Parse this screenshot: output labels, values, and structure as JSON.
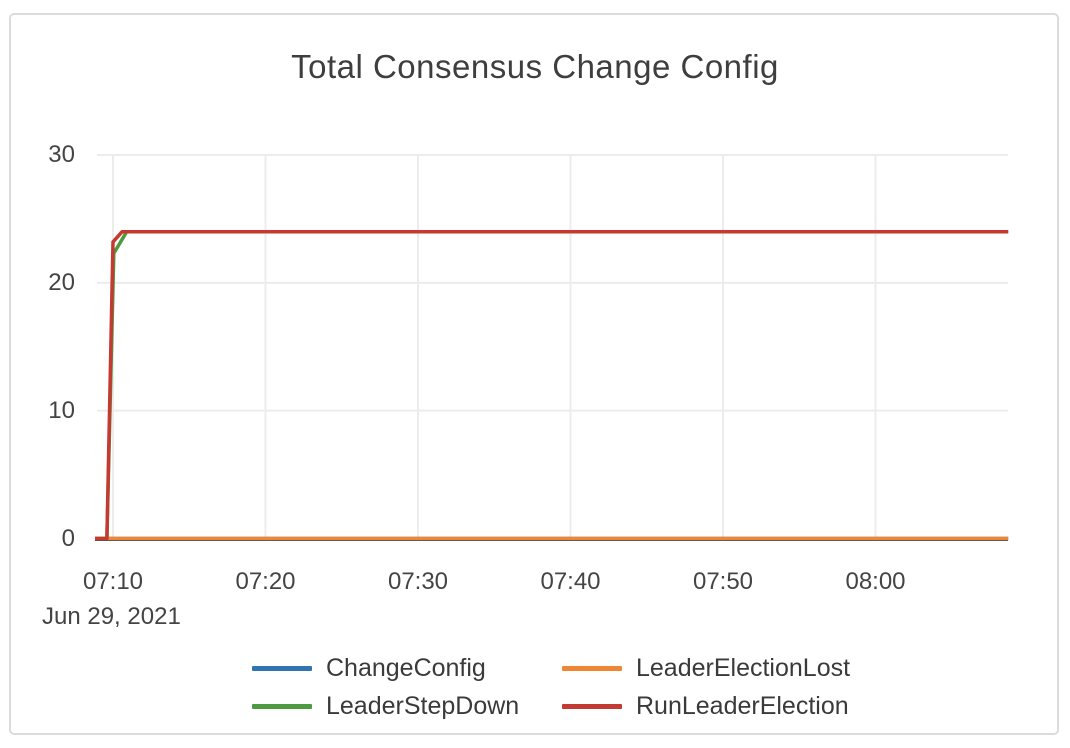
{
  "chart": {
    "title": "Total Consensus Change Config",
    "x_axis": {
      "date_label": "Jun 29, 2021",
      "tick_labels": [
        "07:10",
        "07:20",
        "07:30",
        "07:40",
        "07:50",
        "08:00"
      ],
      "tick_minutes": [
        10,
        20,
        30,
        40,
        50,
        60
      ],
      "domain_minutes_after_0700": [
        8.82,
        68.7
      ]
    },
    "y_axis": {
      "tick_values": [
        0,
        10,
        20,
        30
      ],
      "range": [
        0,
        30
      ]
    }
  },
  "chart_data": {
    "type": "line",
    "title": "Total Consensus Change Config",
    "xlabel": "Jun 29, 2021 (time of day)",
    "ylabel": "",
    "x_tick_labels": [
      "07:10",
      "07:20",
      "07:30",
      "07:40",
      "07:50",
      "08:00"
    ],
    "ylim": [
      0,
      30
    ],
    "grid": true,
    "legend_position": "bottom",
    "series": [
      {
        "name": "ChangeConfig",
        "color": "#3273b1",
        "points_minutes_value": [
          [
            8.82,
            0
          ],
          [
            68.7,
            0
          ]
        ],
        "summary": "flat at 0 for the whole window"
      },
      {
        "name": "LeaderElectionLost",
        "color": "#ef8633",
        "points_minutes_value": [
          [
            8.82,
            0
          ],
          [
            68.7,
            0
          ]
        ],
        "summary": "flat at 0 for the whole window"
      },
      {
        "name": "LeaderStepDown",
        "color": "#4d9a40",
        "points_minutes_value": [
          [
            8.82,
            0
          ],
          [
            9.6,
            0
          ],
          [
            10.05,
            22.3
          ],
          [
            10.9,
            24
          ],
          [
            68.7,
            24
          ]
        ],
        "summary": "0 until ~07:10, jumps to 24, flat at 24 afterwards"
      },
      {
        "name": "RunLeaderElection",
        "color": "#c43a31",
        "points_minutes_value": [
          [
            8.82,
            0
          ],
          [
            9.6,
            0
          ],
          [
            10.0,
            23.2
          ],
          [
            10.6,
            24
          ],
          [
            68.7,
            24
          ]
        ],
        "summary": "0 until ~07:10, jumps to 24, flat at 24 afterwards"
      }
    ]
  },
  "legend": {
    "items": [
      {
        "name": "ChangeConfig",
        "color": "#3273b1"
      },
      {
        "name": "LeaderElectionLost",
        "color": "#ef8633"
      },
      {
        "name": "LeaderStepDown",
        "color": "#4d9a40"
      },
      {
        "name": "RunLeaderElection",
        "color": "#c43a31"
      }
    ]
  },
  "colors": {
    "card_border": "#dcdcdc",
    "grid_line": "#ececec",
    "axis_line": "#3f3f3f",
    "text": "#444444",
    "title_text": "#3e3e3e"
  }
}
